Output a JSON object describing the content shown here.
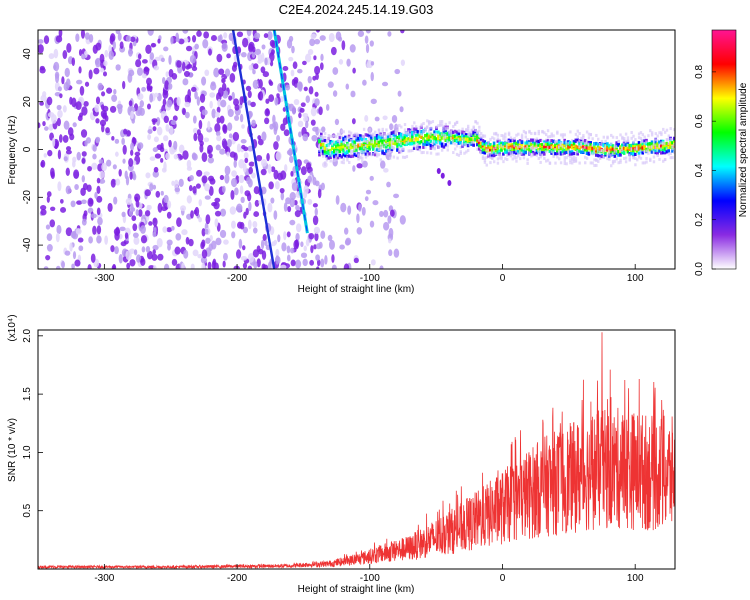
{
  "title": "C2E4.2024.245.14.19.G03",
  "chart_data": [
    {
      "type": "heatmap",
      "xlabel": "Height of straight line (km)",
      "ylabel": "Frequency (Hz)",
      "xlim": [
        -350,
        130
      ],
      "ylim": [
        -50,
        50
      ],
      "xticks": [
        -300,
        -200,
        -100,
        0,
        100
      ],
      "yticks": [
        -40,
        -20,
        0,
        20,
        40
      ],
      "colorbar": {
        "label": "Normalized spectral amplitude",
        "range": [
          0,
          0.97
        ],
        "ticks": [
          0.0,
          0.2,
          0.4,
          0.6,
          0.8
        ],
        "colors": [
          "#ffffff",
          "#8a2be2",
          "#0000ff",
          "#00ffff",
          "#00ff00",
          "#ffff00",
          "#ff0000",
          "#ff1493"
        ]
      },
      "features": {
        "noise_region_x": [
          -350,
          -135
        ],
        "diagonal_streak": {
          "x": [
            -172,
            -147
          ],
          "y": [
            50,
            -35
          ]
        },
        "left_streak": {
          "x": [
            -203,
            -172
          ],
          "y": [
            50,
            -50
          ]
        },
        "signal_band_center": [
          [
            -135,
            0
          ],
          [
            -120,
            1
          ],
          [
            -100,
            2
          ],
          [
            -80,
            3
          ],
          [
            -60,
            5
          ],
          [
            -40,
            5
          ],
          [
            -25,
            4
          ],
          [
            -20,
            5
          ],
          [
            -15,
            1
          ],
          [
            -10,
            0
          ],
          [
            0,
            1
          ],
          [
            20,
            1
          ],
          [
            40,
            1
          ],
          [
            60,
            1
          ],
          [
            70,
            0
          ],
          [
            90,
            0
          ],
          [
            110,
            1
          ],
          [
            130,
            2
          ]
        ]
      }
    },
    {
      "type": "line",
      "xlabel": "Height of straight line (km)",
      "ylabel": "SNR (10 * v/v)",
      "multiplier": "(x10⁴)",
      "xlim": [
        -350,
        130
      ],
      "ylim": [
        0,
        2.05
      ],
      "xticks": [
        -300,
        -200,
        -100,
        0,
        100
      ],
      "yticks": [
        0.5,
        1.0,
        1.5,
        2.0
      ],
      "series": [
        {
          "color": "#ee3333",
          "envelope": [
            [
              -350,
              0.02
            ],
            [
              -250,
              0.02
            ],
            [
              -160,
              0.03
            ],
            [
              -150,
              0.04
            ],
            [
              -130,
              0.05
            ],
            [
              -110,
              0.09
            ],
            [
              -90,
              0.15
            ],
            [
              -70,
              0.2
            ],
            [
              -50,
              0.3
            ],
            [
              -30,
              0.4
            ],
            [
              -10,
              0.52
            ],
            [
              10,
              0.65
            ],
            [
              30,
              0.78
            ],
            [
              50,
              0.86
            ],
            [
              70,
              0.94
            ],
            [
              90,
              0.96
            ],
            [
              110,
              0.92
            ],
            [
              130,
              0.9
            ]
          ],
          "peaks": [
            [
              75,
              2.03
            ],
            [
              103,
              1.63
            ],
            [
              95,
              1.55
            ],
            [
              60,
              1.45
            ],
            [
              120,
              1.45
            ],
            [
              45,
              1.35
            ]
          ]
        }
      ]
    }
  ]
}
